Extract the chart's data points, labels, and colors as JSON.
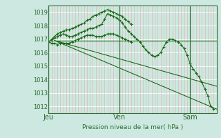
{
  "background_color": "#cce8e0",
  "plot_bg_color": "#cce8e0",
  "line_color": "#1a6b1a",
  "axis_color": "#2d6b2d",
  "xlabel": "Pression niveau de la mer( hPa )",
  "ylim": [
    1011.5,
    1019.5
  ],
  "yticks": [
    1012,
    1013,
    1014,
    1015,
    1016,
    1017,
    1018,
    1019
  ],
  "xtick_labels": [
    "Jeu",
    "Ven",
    "Sam"
  ],
  "xtick_positions": [
    0,
    24,
    48
  ],
  "xlim": [
    0,
    57
  ],
  "line1_x": [
    2,
    57
  ],
  "line1_y": [
    1016.9,
    1016.9
  ],
  "line2_x": [
    2,
    57
  ],
  "line2_y": [
    1016.9,
    1011.8
  ],
  "line3_x": [
    2,
    57
  ],
  "line3_y": [
    1016.9,
    1013.5
  ],
  "main_x": [
    0,
    1,
    2,
    3,
    4,
    5,
    6,
    7,
    8,
    9,
    10,
    11,
    12,
    13,
    14,
    15,
    16,
    17,
    18,
    19,
    20,
    21,
    22,
    23,
    24,
    25,
    26,
    27,
    28,
    29,
    30,
    31,
    32,
    33,
    34,
    35,
    36,
    37,
    38,
    39,
    40,
    41,
    42,
    43,
    44,
    45,
    46,
    47,
    48,
    49,
    50,
    51,
    52,
    53,
    54,
    55,
    56
  ],
  "main_y": [
    1016.8,
    1016.9,
    1017.1,
    1017.2,
    1017.3,
    1017.4,
    1017.3,
    1017.2,
    1017.2,
    1017.3,
    1017.4,
    1017.5,
    1017.6,
    1017.7,
    1017.8,
    1017.8,
    1017.9,
    1018.0,
    1018.1,
    1018.5,
    1018.9,
    1018.8,
    1018.7,
    1018.6,
    1018.4,
    1018.2,
    1017.9,
    1017.6,
    1017.4,
    1017.2,
    1017.0,
    1016.8,
    1016.5,
    1016.2,
    1016.0,
    1015.8,
    1015.7,
    1015.8,
    1016.0,
    1016.4,
    1016.8,
    1017.0,
    1017.0,
    1016.9,
    1016.8,
    1016.6,
    1016.3,
    1015.8,
    1015.2,
    1014.8,
    1014.5,
    1014.2,
    1013.8,
    1013.3,
    1012.8,
    1012.0,
    1011.8
  ],
  "series_hi_x": [
    0,
    1,
    2,
    3,
    4,
    5,
    6,
    7,
    8,
    9,
    10,
    11,
    12,
    13,
    14,
    15,
    16,
    17,
    18,
    19,
    20,
    21,
    22,
    23,
    24,
    25,
    26,
    27,
    28
  ],
  "series_hi_y": [
    1016.8,
    1017.0,
    1017.2,
    1017.4,
    1017.5,
    1017.6,
    1017.7,
    1017.7,
    1017.8,
    1017.9,
    1018.0,
    1018.1,
    1018.2,
    1018.4,
    1018.5,
    1018.7,
    1018.8,
    1018.9,
    1019.0,
    1019.1,
    1019.2,
    1019.1,
    1019.0,
    1018.9,
    1018.8,
    1018.7,
    1018.5,
    1018.3,
    1018.1
  ],
  "series_lo_x": [
    0,
    1,
    2,
    3,
    4,
    5,
    6,
    7,
    8,
    9,
    10,
    11,
    12,
    13,
    14,
    15,
    16,
    17,
    18,
    19,
    20,
    21,
    22,
    23,
    24,
    25,
    26,
    27,
    28
  ],
  "series_lo_y": [
    1016.8,
    1016.7,
    1016.7,
    1016.6,
    1016.7,
    1016.7,
    1016.7,
    1016.7,
    1016.8,
    1016.9,
    1017.0,
    1017.1,
    1017.2,
    1017.3,
    1017.3,
    1017.3,
    1017.2,
    1017.2,
    1017.2,
    1017.3,
    1017.4,
    1017.4,
    1017.4,
    1017.3,
    1017.2,
    1017.1,
    1017.0,
    1016.9,
    1016.8
  ]
}
